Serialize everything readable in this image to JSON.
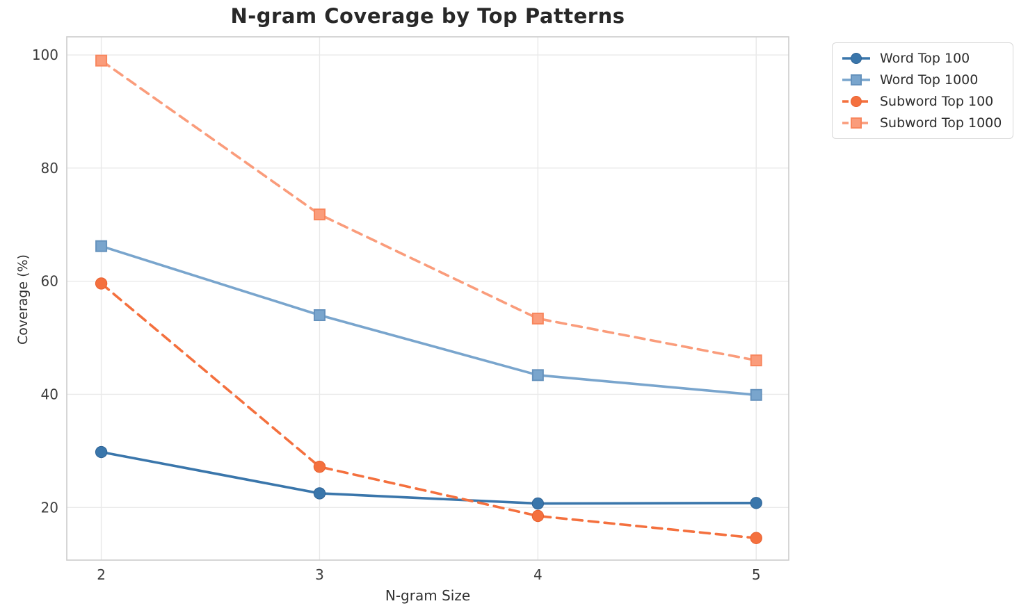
{
  "chart_data": {
    "type": "line",
    "title": "N-gram Coverage by Top Patterns",
    "xlabel": "N-gram Size",
    "ylabel": "Coverage (%)",
    "x": [
      2,
      3,
      4,
      5
    ],
    "xticks": [
      2,
      3,
      4,
      5
    ],
    "yticks": [
      20,
      40,
      60,
      80,
      100
    ],
    "xlim": [
      1.842,
      5.149
    ],
    "ylim": [
      10.7,
      103.2
    ],
    "grid": true,
    "legend_position": "outside-top-right",
    "series": [
      {
        "name": "Word Top 100",
        "values": [
          29.8,
          22.5,
          20.7,
          20.8
        ],
        "color": "#3a76ab",
        "edge_color": "#2f6395",
        "line_style": "solid",
        "marker": "circle"
      },
      {
        "name": "Word Top 1000",
        "values": [
          66.2,
          54.0,
          43.4,
          39.9
        ],
        "color": "#79a5cd",
        "edge_color": "#6592bd",
        "line_style": "solid",
        "marker": "square"
      },
      {
        "name": "Subword Top 100",
        "values": [
          59.6,
          27.2,
          18.5,
          14.6
        ],
        "color": "#f4703e",
        "edge_color": "#e85f2d",
        "line_style": "dashed",
        "marker": "circle"
      },
      {
        "name": "Subword Top 1000",
        "values": [
          99.0,
          71.8,
          53.4,
          46.0
        ],
        "color": "#fa9c7b",
        "edge_color": "#f8865d",
        "line_style": "dashed",
        "marker": "square"
      }
    ],
    "style": {
      "grid_color": "#e9e9e9",
      "spine_color": "#cccccc",
      "tick_label_color": "#3c3c3c",
      "plot_background": "#ffffff"
    }
  }
}
